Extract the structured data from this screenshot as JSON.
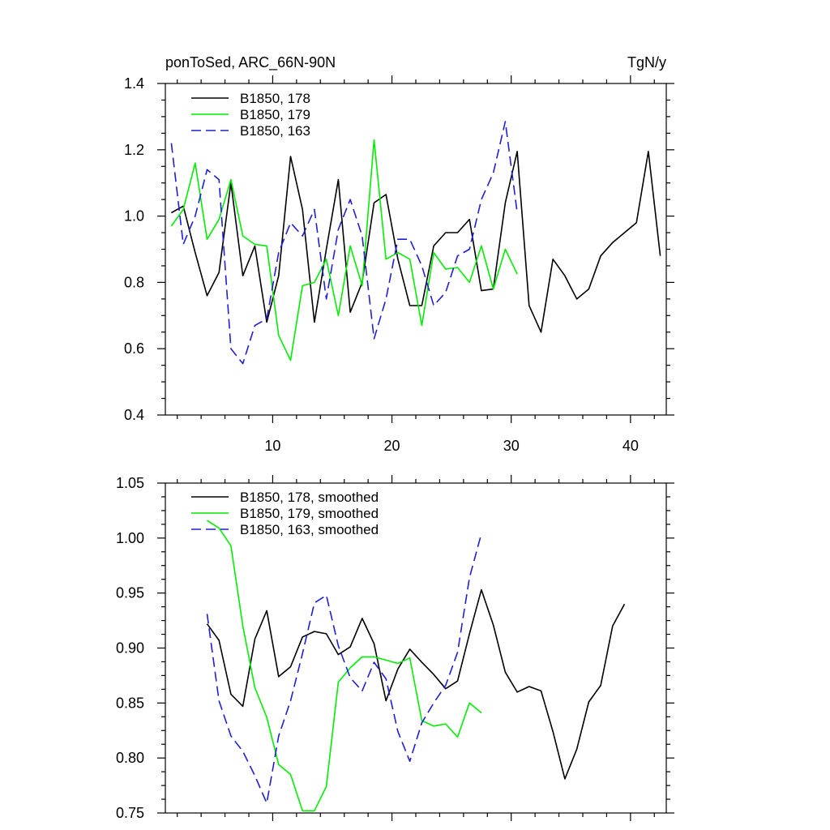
{
  "page": {
    "left_title": "ponToSed, ARC_66N-90N",
    "right_title": "TgN/y"
  },
  "chart_data": [
    {
      "type": "line",
      "title": "ponToSed, ARC_66N-90N",
      "units": "TgN/y",
      "xlim": [
        1,
        43
      ],
      "ylim": [
        0.4,
        1.4
      ],
      "x_major_ticks": [
        10,
        20,
        30,
        40
      ],
      "x_tick_labels": [
        "10",
        "20",
        "30",
        "40"
      ],
      "y_major_ticks": [
        0.4,
        0.6,
        0.8,
        1.0,
        1.2,
        1.4
      ],
      "y_tick_labels": [
        "0.4",
        "0.6",
        "0.8",
        "1.0",
        "1.2",
        "1.4"
      ],
      "legend_position": "top-left",
      "grid": false,
      "series": [
        {
          "name": "B1850, 178",
          "color": "#000000",
          "dash": "solid",
          "x": [
            1.5,
            2.5,
            3.5,
            4.5,
            5.5,
            6.5,
            7.5,
            8.5,
            9.5,
            10.5,
            11.5,
            12.5,
            13.5,
            14.5,
            15.5,
            16.5,
            17.5,
            18.5,
            19.5,
            20.5,
            21.5,
            22.5,
            23.5,
            24.5,
            25.5,
            26.5,
            27.5,
            28.5,
            29.5,
            30.5,
            31.5,
            32.5,
            33.5,
            34.5,
            35.5,
            36.5,
            37.5,
            38.5,
            39.5,
            40.5,
            41.5,
            42.5
          ],
          "y": [
            1.01,
            1.03,
            0.89,
            0.76,
            0.83,
            1.1,
            0.82,
            0.91,
            0.68,
            0.82,
            1.18,
            1.02,
            0.68,
            0.9,
            1.11,
            0.71,
            0.8,
            1.04,
            1.065,
            0.87,
            0.73,
            0.73,
            0.91,
            0.95,
            0.95,
            0.99,
            0.775,
            0.78,
            1.04,
            1.195,
            0.73,
            0.65,
            0.87,
            0.82,
            0.75,
            0.78,
            0.88,
            0.92,
            0.95,
            0.98,
            1.195,
            0.88
          ]
        },
        {
          "name": "B1850, 179",
          "color": "#00ee00",
          "dash": "solid",
          "x": [
            1.5,
            2.5,
            3.5,
            4.5,
            5.5,
            6.5,
            7.5,
            8.5,
            9.5,
            10.5,
            11.5,
            12.5,
            13.5,
            14.5,
            15.5,
            16.5,
            17.5,
            18.5,
            19.5,
            20.5,
            21.5,
            22.5,
            23.5,
            24.5,
            25.5,
            26.5,
            27.5,
            28.5,
            29.5,
            30.5
          ],
          "y": [
            0.97,
            1.02,
            1.16,
            0.93,
            0.99,
            1.11,
            0.94,
            0.915,
            0.91,
            0.64,
            0.565,
            0.79,
            0.8,
            0.87,
            0.7,
            0.91,
            0.79,
            1.23,
            0.87,
            0.89,
            0.87,
            0.67,
            0.89,
            0.84,
            0.845,
            0.8,
            0.91,
            0.78,
            0.9,
            0.825
          ]
        },
        {
          "name": "B1850, 163",
          "color": "#1f1fd6",
          "dash": "dashed",
          "x": [
            1.5,
            2.5,
            3.5,
            4.5,
            5.5,
            6.5,
            7.5,
            8.5,
            9.5,
            10.5,
            11.5,
            12.5,
            13.5,
            14.5,
            15.5,
            16.5,
            17.5,
            18.5,
            19.5,
            20.5,
            21.5,
            22.5,
            23.5,
            24.5,
            25.5,
            26.5,
            27.5,
            28.5,
            29.5,
            30.5
          ],
          "y": [
            1.22,
            0.915,
            1.0,
            1.14,
            1.11,
            0.6,
            0.555,
            0.67,
            0.69,
            0.89,
            0.98,
            0.94,
            1.02,
            0.75,
            0.96,
            1.05,
            0.94,
            0.63,
            0.75,
            0.93,
            0.93,
            0.85,
            0.73,
            0.77,
            0.88,
            0.9,
            1.05,
            1.13,
            1.285,
            1.01
          ]
        }
      ]
    },
    {
      "type": "line",
      "xlim": [
        1,
        43
      ],
      "ylim": [
        0.75,
        1.05
      ],
      "x_major_ticks": [
        10,
        20,
        30,
        40
      ],
      "y_major_ticks": [
        0.75,
        0.8,
        0.85,
        0.9,
        0.95,
        1.0,
        1.05
      ],
      "y_tick_labels": [
        "0.75",
        "0.80",
        "0.85",
        "0.90",
        "0.95",
        "1.00",
        "1.05"
      ],
      "legend_position": "top-left",
      "grid": false,
      "series": [
        {
          "name": "B1850, 178, smoothed",
          "color": "#000000",
          "dash": "solid",
          "x": [
            4.5,
            5.5,
            6.5,
            7.5,
            8.5,
            9.5,
            10.5,
            11.5,
            12.5,
            13.5,
            14.5,
            15.5,
            16.5,
            17.5,
            18.5,
            19.5,
            20.5,
            21.5,
            22.5,
            23.5,
            24.5,
            25.5,
            26.5,
            27.5,
            28.5,
            29.5,
            30.5,
            31.5,
            32.5,
            33.5,
            34.5,
            35.5,
            36.5,
            37.5,
            38.5,
            39.5
          ],
          "y": [
            0.922,
            0.907,
            0.858,
            0.847,
            0.908,
            0.934,
            0.874,
            0.883,
            0.91,
            0.915,
            0.913,
            0.894,
            0.901,
            0.927,
            0.904,
            0.852,
            0.881,
            0.899,
            0.887,
            0.876,
            0.863,
            0.87,
            0.913,
            0.953,
            0.921,
            0.878,
            0.86,
            0.865,
            0.861,
            0.824,
            0.781,
            0.808,
            0.851,
            0.866,
            0.92,
            0.94
          ]
        },
        {
          "name": "B1850, 179, smoothed",
          "color": "#00ee00",
          "dash": "solid",
          "x": [
            4.5,
            5.5,
            6.5,
            7.5,
            8.5,
            9.5,
            10.5,
            11.5,
            12.5,
            13.5,
            14.5,
            15.5,
            16.5,
            17.5,
            18.5,
            19.5,
            20.5,
            21.5,
            22.5,
            23.5,
            24.5,
            25.5,
            26.5,
            27.5
          ],
          "y": [
            1.016,
            1.009,
            0.993,
            0.92,
            0.864,
            0.837,
            0.794,
            0.785,
            0.752,
            0.752,
            0.774,
            0.869,
            0.882,
            0.892,
            0.892,
            0.889,
            0.886,
            0.891,
            0.834,
            0.829,
            0.831,
            0.819,
            0.85,
            0.841
          ]
        },
        {
          "name": "B1850, 163, smoothed",
          "color": "#1f1fd6",
          "dash": "dashed",
          "x": [
            4.5,
            5.5,
            6.5,
            7.5,
            8.5,
            9.5,
            10.5,
            11.5,
            12.5,
            13.5,
            14.5,
            15.5,
            16.5,
            17.5,
            18.5,
            19.5,
            20.5,
            21.5,
            22.5,
            23.5,
            24.5,
            25.5,
            26.5,
            27.5
          ],
          "y": [
            0.931,
            0.852,
            0.82,
            0.806,
            0.784,
            0.759,
            0.82,
            0.852,
            0.895,
            0.941,
            0.948,
            0.902,
            0.873,
            0.861,
            0.887,
            0.872,
            0.824,
            0.797,
            0.832,
            0.85,
            0.866,
            0.896,
            0.964,
            1.004
          ]
        }
      ]
    }
  ]
}
